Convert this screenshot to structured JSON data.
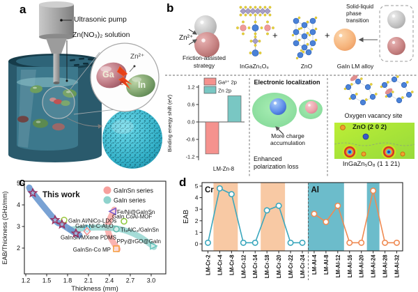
{
  "panels": {
    "a": {
      "label": "a",
      "annotations": {
        "pump": "Ultrasonic pump",
        "solution": "Zn(NO₃)₂ solution",
        "ga": "Ga",
        "indium": "In",
        "electron": "e⁻",
        "zn_ion": "Zn²⁺"
      }
    },
    "b": {
      "label": "b",
      "top": {
        "zn_ion": "Zn²⁺",
        "friction_line1": "Friction-assisted",
        "friction_line2": "strategy",
        "igzo": "InGaZn₅O₈",
        "plus": "+",
        "zno": "ZnO",
        "alloy": "GaIn LM alloy",
        "phase_transition": [
          "Solid-liquid",
          "phase",
          "transition"
        ]
      },
      "middle": {
        "title": "Electronic localization",
        "charge_line1": "More charge",
        "charge_line2": "accumulation",
        "loss_line1": "Enhanced",
        "loss_line2": "polarization loss"
      },
      "right": {
        "vacancy": "Oxygen vacancy site",
        "zno_plane": "ZnO (2 0 2)",
        "igzo_plane": "InGaZn₅O₈ (1 1 21)"
      }
    },
    "c": {
      "label": "c"
    },
    "d": {
      "label": "d"
    }
  },
  "chart_data": [
    {
      "id": "binding-energy-bar",
      "type": "bar",
      "ylabel": "Binding energy shift (eV)",
      "categories": [
        "LM-Zn-8"
      ],
      "series": [
        {
          "name": "Ga³⁺ 2p",
          "color": "#f5928e",
          "values": [
            -1.1
          ]
        },
        {
          "name": "Zn 2p",
          "color": "#79c7c3",
          "values": [
            0.9
          ]
        }
      ],
      "yticks": [
        1.2,
        0.6,
        0.0,
        -0.6,
        -1.2
      ],
      "ylim": [
        -1.45,
        1.45
      ],
      "legend_position": "top-inside"
    },
    {
      "id": "eab-vs-thickness",
      "type": "scatter",
      "xlabel": "Thickness (mm)",
      "ylabel": "EAB/Thickness (GHz/mm)",
      "xticks": [
        1.2,
        1.5,
        1.8,
        2.1,
        2.4,
        2.7,
        3.0
      ],
      "yticks": [
        2,
        3,
        4,
        5
      ],
      "xlim": [
        1.18,
        3.21
      ],
      "ylim": [
        0.8,
        5.1
      ],
      "annotation": "This work",
      "legend": [
        {
          "label": "GaInSn series",
          "color": "#f7a09d"
        },
        {
          "label": "GaIn series",
          "color": "#8fd3cd"
        }
      ],
      "this_work": {
        "band_color": "#6292cc",
        "marker": "star",
        "marker_edge": "#9c2a5a",
        "points": [
          [
            1.3,
            4.55
          ],
          [
            1.62,
            3.3
          ],
          [
            1.72,
            3.1
          ],
          [
            1.92,
            2.68
          ]
        ]
      },
      "trend_bands": [
        {
          "series": "GaInSn",
          "color": "#f7a09d",
          "points": [
            [
              2.52,
              1.95
            ],
            [
              2.4,
              2.6
            ],
            [
              2.38,
              3.1
            ],
            [
              2.47,
              3.78
            ]
          ]
        },
        {
          "series": "GaIn",
          "color": "#8fd3cd",
          "points": [
            [
              1.84,
              2.86
            ],
            [
              2.2,
              2.95
            ],
            [
              2.55,
              2.88
            ],
            [
              2.82,
              2.55
            ],
            [
              3.04,
              2.05
            ]
          ]
        }
      ],
      "points": [
        {
          "label": "GaIn Al/NiCo-LDOs",
          "x": 1.75,
          "y": 3.3,
          "marker": "circle",
          "color": "#9ac83c",
          "label_x": 1.81,
          "label_y": 3.27,
          "anchor": "start"
        },
        {
          "label": "GaIn Ni-C-Al₂O₃",
          "x": 2.08,
          "y": 2.9,
          "marker": "diamond",
          "color": "#55c8e8",
          "label_x": 2.49,
          "label_y": 3.04,
          "anchor": "end"
        },
        {
          "label": "GaInSn/MXene PDMS",
          "x": 2.08,
          "y": 2.78,
          "marker": "diamond",
          "color": "#ef8f8f",
          "label_x": 2.1,
          "label_y": 2.5,
          "anchor": "middle"
        },
        {
          "label": "Fe/Ni@GaInSn",
          "x": 2.45,
          "y": 3.7,
          "marker": "triangle-left",
          "color": "#7458d0",
          "label_x": 2.51,
          "label_y": 3.67,
          "anchor": "start"
        },
        {
          "label": "GaIn CoAl-MOF",
          "x": 2.61,
          "y": 3.24,
          "marker": "circle",
          "color": "#88c838",
          "label_x": 2.44,
          "label_y": 3.46,
          "anchor": "start"
        },
        {
          "label": "Ti₃AlC₂/GaInSn",
          "x": 2.5,
          "y": 2.88,
          "marker": "circle",
          "color": "#5bb8ac",
          "label_x": 2.56,
          "label_y": 2.85,
          "anchor": "start"
        },
        {
          "label": "PPy@rGO@GaIn",
          "x": 3.03,
          "y": 2.1,
          "marker": "triangle-right",
          "color": "#66c4bc",
          "label_x": 3.14,
          "label_y": 2.33,
          "anchor": "end"
        },
        {
          "label": "GaInSn-Co MP",
          "x": 2.5,
          "y": 1.97,
          "marker": "square",
          "color": "#f59a3a",
          "label_x": 2.42,
          "label_y": 1.94,
          "anchor": "end"
        }
      ]
    },
    {
      "id": "eab-vs-composition",
      "type": "line",
      "ylabel": "EAB",
      "yticks": [
        0,
        1,
        2,
        3,
        4,
        5
      ],
      "ylim": [
        -0.6,
        5.3
      ],
      "categories": [
        "LM-Cr-2",
        "LM-Cr-4",
        "LM-Cr-8",
        "LM-Cr-12",
        "LM-Cr-14",
        "LM-Cr-18",
        "LM-Cr-20",
        "LM-Cr-22",
        "LM-Cr-24",
        "LM-Al-4",
        "LM-Al-8",
        "LM-Al-12",
        "LM-Al-16",
        "LM-Al-20",
        "LM-Al-24",
        "LM-Al-28",
        "LM-Al-32"
      ],
      "series": [
        {
          "name": "Cr",
          "tag_color": "#27a5c9",
          "color": "#3ba7bd",
          "values": [
            0.1,
            4.8,
            4.3,
            0.1,
            0.1,
            2.9,
            3.3,
            0.1,
            0.1,
            null,
            null,
            null,
            null,
            null,
            null,
            null,
            null
          ]
        },
        {
          "name": "Al",
          "tag_color": "#e8392c",
          "color": "#ef8a52",
          "values": [
            null,
            null,
            null,
            null,
            null,
            null,
            null,
            null,
            null,
            2.6,
            1.9,
            3.3,
            0.1,
            0.1,
            4.6,
            0.1,
            0.1
          ]
        }
      ],
      "highlight_bands": [
        {
          "color": "#f8c9a4",
          "from": 1,
          "to": 2
        },
        {
          "color": "#f8c9a4",
          "from": 5,
          "to": 6
        },
        {
          "color": "#6cbccb",
          "from": 9,
          "to": 11
        },
        {
          "color": "#6cbccb",
          "from": 14,
          "to": 14
        }
      ],
      "divider_after": 8
    }
  ]
}
